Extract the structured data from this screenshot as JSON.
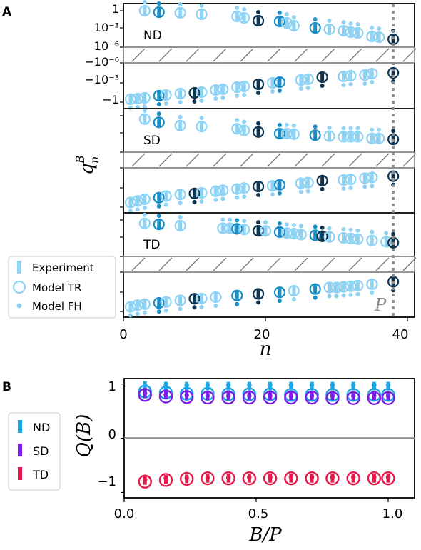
{
  "colors": {
    "light": "#8fd3f4",
    "mid": "#1a8fc7",
    "dark": "#0f3550",
    "nd": "#1aa7e8",
    "sd": "#7a1fe6",
    "td": "#e6194b",
    "gray": "#8c8c8c"
  },
  "chart_data": [
    {
      "type": "scatter",
      "panel_label": "A",
      "xlabel": "n",
      "ylabel": "q",
      "ylabel_sup": "B",
      "ylabel_sub": "n",
      "xlim": [
        0,
        41
      ],
      "xticks": [
        "0",
        "20",
        "40"
      ],
      "yticks_nd": [
        "1",
        "10⁻³",
        "10⁻⁶",
        "−10⁻⁶",
        "−10⁻³",
        "−1"
      ],
      "period_label": "P",
      "period_n": 38,
      "rows": [
        {
          "name": "ND",
          "positive": {
            "n": [
              3,
              5,
              8,
              11,
              16,
              17,
              19,
              22,
              23,
              24,
              27,
              29,
              31,
              32,
              33,
              35,
              36,
              38
            ],
            "v": [
              -0.2,
              -0.4,
              -0.5,
              -0.7,
              -1.0,
              -1.2,
              -1.6,
              -1.7,
              -1.9,
              -2.3,
              -2.6,
              -2.8,
              -3.0,
              -3.2,
              -3.3,
              -3.8,
              -3.9,
              -4.2
            ]
          },
          "negative": {
            "n": [
              1,
              2,
              3,
              5,
              6,
              8,
              10,
              11,
              13,
              14,
              16,
              17,
              19,
              21,
              22,
              25,
              26,
              28,
              31,
              32,
              34,
              35,
              38
            ],
            "v": [
              -0.2,
              -0.3,
              -0.4,
              -0.7,
              -0.8,
              -1.0,
              -1.1,
              -1.2,
              -1.5,
              -1.6,
              -1.9,
              -2.0,
              -2.3,
              -2.5,
              -2.6,
              -2.9,
              -3.0,
              -3.3,
              -3.4,
              -3.5,
              -3.6,
              -3.8,
              -3.9
            ]
          },
          "highlight_mid": [
            22,
            27,
            5
          ],
          "highlight_dark": [
            19,
            38,
            10,
            28
          ]
        },
        {
          "name": "SD",
          "positive": {
            "n": [
              3,
              5,
              8,
              11,
              16,
              17,
              19,
              22,
              23,
              24,
              27,
              29,
              31,
              32,
              33,
              35,
              36,
              38
            ],
            "v": [
              0.85,
              0.75,
              0.65,
              0.62,
              0.55,
              0.5,
              0.45,
              0.4,
              0.4,
              0.38,
              0.35,
              0.32,
              0.3,
              0.3,
              0.3,
              0.25,
              0.25,
              0.22
            ]
          },
          "negative": {
            "n": [
              1,
              2,
              3,
              5,
              6,
              8,
              10,
              11,
              13,
              14,
              16,
              17,
              19,
              21,
              22,
              25,
              26,
              28,
              31,
              32,
              34,
              35,
              38
            ],
            "v": [
              0.1,
              0.15,
              0.2,
              0.25,
              0.3,
              0.35,
              0.38,
              0.4,
              0.45,
              0.48,
              0.52,
              0.55,
              0.6,
              0.62,
              0.65,
              0.7,
              0.72,
              0.78,
              0.8,
              0.82,
              0.86,
              0.88,
              0.92
            ]
          },
          "highlight_mid": [
            22,
            27,
            5
          ],
          "highlight_dark": [
            19,
            38,
            10,
            28
          ]
        },
        {
          "name": "TD",
          "positive": {
            "n": [
              3,
              5,
              8,
              14,
              15,
              16,
              17,
              19,
              20,
              22,
              23,
              24,
              25,
              27,
              28,
              29,
              31,
              32,
              33,
              35,
              37,
              38
            ],
            "v": [
              0.85,
              0.82,
              0.78,
              0.7,
              0.7,
              0.68,
              0.66,
              0.62,
              0.62,
              0.58,
              0.55,
              0.53,
              0.5,
              0.48,
              0.45,
              0.43,
              0.4,
              0.38,
              0.36,
              0.32,
              0.28,
              0.25
            ]
          },
          "negative": {
            "n": [
              1,
              2,
              3,
              5,
              6,
              8,
              10,
              11,
              13,
              16,
              19,
              22,
              24,
              27,
              29,
              30,
              31,
              32,
              33,
              35,
              38
            ],
            "v": [
              0.1,
              0.15,
              0.18,
              0.22,
              0.25,
              0.3,
              0.35,
              0.36,
              0.4,
              0.45,
              0.5,
              0.55,
              0.6,
              0.65,
              0.7,
              0.7,
              0.72,
              0.74,
              0.76,
              0.8,
              0.88
            ]
          },
          "highlight_mid": [
            22,
            27,
            5,
            16
          ],
          "highlight_dark": [
            19,
            38,
            10,
            28
          ]
        }
      ],
      "legend": [
        "Experiment",
        "Model TR",
        "Model FH"
      ]
    },
    {
      "type": "scatter",
      "panel_label": "B",
      "xlabel": "B/P",
      "ylabel": "Q(B)",
      "xlim": [
        0,
        1.1
      ],
      "ylim": [
        -1.1,
        1.1
      ],
      "xticks": [
        "0.0",
        "0.5",
        "1.0"
      ],
      "yticks": [
        "1",
        "0",
        "−1"
      ],
      "x": [
        0.079,
        0.158,
        0.237,
        0.316,
        0.395,
        0.474,
        0.553,
        0.632,
        0.711,
        0.789,
        0.868,
        0.947,
        1.0
      ],
      "series": [
        {
          "name": "ND",
          "exp": [
            0.97,
            0.96,
            0.96,
            0.96,
            0.96,
            0.96,
            0.96,
            0.96,
            0.96,
            0.96,
            0.96,
            0.96,
            0.96
          ],
          "tr": [
            0.86,
            0.84,
            0.82,
            0.82,
            0.81,
            0.81,
            0.81,
            0.8,
            0.8,
            0.8,
            0.8,
            0.8,
            0.8
          ],
          "fh": [
            0.98,
            0.98,
            0.98,
            0.98,
            0.98,
            0.98,
            0.98,
            0.98,
            0.98,
            0.98,
            0.98,
            0.98,
            0.98
          ]
        },
        {
          "name": "SD",
          "exp": [
            0.82,
            0.8,
            0.79,
            0.78,
            0.78,
            0.78,
            0.78,
            0.78,
            0.78,
            0.78,
            0.78,
            0.78,
            0.78
          ],
          "tr": [
            0.8,
            0.77,
            0.76,
            0.75,
            0.75,
            0.75,
            0.75,
            0.75,
            0.75,
            0.74,
            0.74,
            0.74,
            0.74
          ],
          "fh": [
            0.83,
            0.8,
            0.79,
            0.78,
            0.78,
            0.78,
            0.78,
            0.78,
            0.78,
            0.78,
            0.78,
            0.78,
            0.78
          ]
        },
        {
          "name": "TD",
          "exp": [
            -0.78,
            -0.76,
            -0.75,
            -0.74,
            -0.74,
            -0.74,
            -0.74,
            -0.74,
            -0.74,
            -0.74,
            -0.74,
            -0.74,
            -0.74
          ],
          "tr": [
            -0.8,
            -0.77,
            -0.75,
            -0.74,
            -0.74,
            -0.74,
            -0.74,
            -0.74,
            -0.74,
            -0.74,
            -0.74,
            -0.74,
            -0.74
          ],
          "fh": [
            -0.76,
            -0.74,
            -0.73,
            -0.73,
            -0.73,
            -0.72,
            -0.72,
            -0.72,
            -0.72,
            -0.72,
            -0.72,
            -0.72,
            -0.72
          ]
        }
      ],
      "legend": [
        "ND",
        "SD",
        "TD"
      ]
    }
  ]
}
